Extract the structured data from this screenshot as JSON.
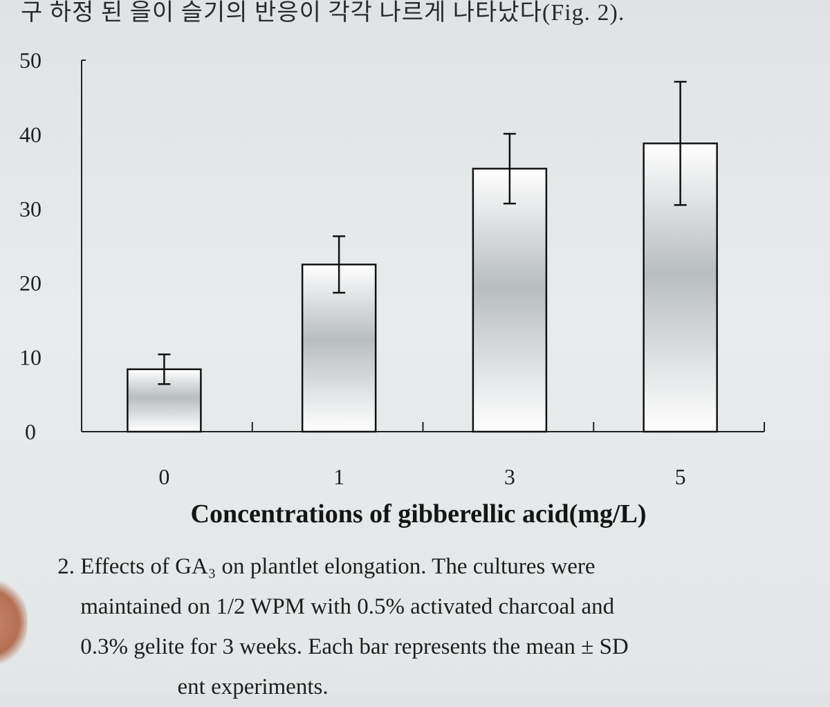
{
  "top_text": "구 하정 된 을이 슬기의 반응이 각각 나르게 나타났다(Fig. 2).",
  "chart_data": {
    "type": "bar",
    "categories": [
      "0",
      "1",
      "3",
      "5"
    ],
    "values": [
      8.4,
      22.5,
      35.4,
      38.8
    ],
    "errors": [
      2.0,
      3.8,
      4.7,
      8.3
    ],
    "title": "",
    "xlabel": "Concentrations of gibberellic acid(mg/L)",
    "ylabel": "",
    "ylim": [
      0,
      50
    ],
    "yticks": [
      "0",
      "10",
      "20",
      "30",
      "40",
      "50"
    ],
    "grid": false,
    "legend": "none",
    "bar_fill": "#9aa0a3",
    "bar_stroke": "#111111"
  },
  "caption": {
    "number": "2.",
    "lines": [
      "Effects of GA₃ on plantlet elongation. The cultures were",
      "maintained on 1/2 WPM with 0.5% activated charcoal and",
      "0.3% gelite for 3 weeks. Each bar represents the mean ± SD",
      "                 ent experiments."
    ]
  }
}
